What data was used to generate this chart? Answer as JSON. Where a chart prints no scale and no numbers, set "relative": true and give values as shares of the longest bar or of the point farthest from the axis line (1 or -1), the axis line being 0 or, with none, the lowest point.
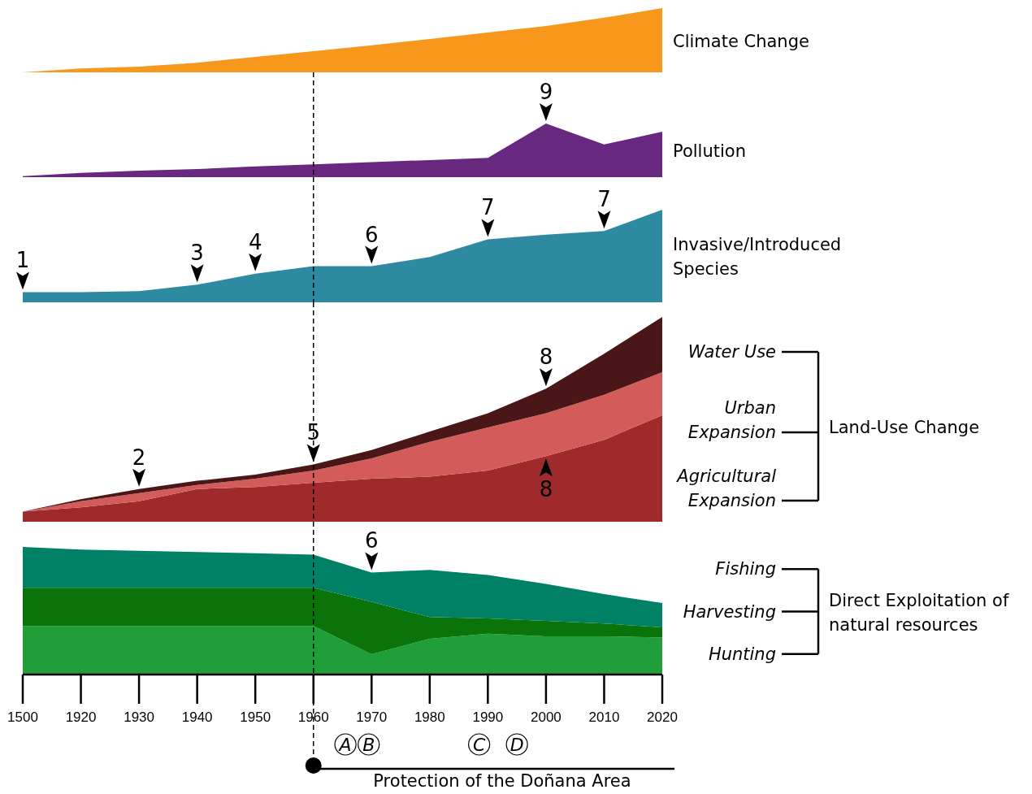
{
  "chart_data": [
    {
      "type": "area",
      "relative": true,
      "tick_labels": false,
      "categories": [
        "1500",
        "1920",
        "1930",
        "1940",
        "1950",
        "1960",
        "1970",
        "1980",
        "1990",
        "2000",
        "2010",
        "2020"
      ],
      "series": [
        {
          "name": "Climate Change",
          "color": "#f7981d",
          "values": [
            0,
            0.06,
            0.09,
            0.15,
            0.24,
            0.33,
            0.42,
            0.52,
            0.62,
            0.72,
            0.85,
            1
          ]
        }
      ]
    },
    {
      "type": "area",
      "relative": true,
      "tick_labels": false,
      "categories": [
        "1500",
        "1920",
        "1930",
        "1940",
        "1950",
        "1960",
        "1970",
        "1980",
        "1990",
        "2000",
        "2010",
        "2020"
      ],
      "series": [
        {
          "name": "Pollution",
          "color": "#68287f",
          "values": [
            0.02,
            0.08,
            0.12,
            0.15,
            0.2,
            0.24,
            0.28,
            0.32,
            0.36,
            1,
            0.61,
            0.85
          ]
        }
      ],
      "ref_lines": [
        {
          "axis": "x",
          "value": "1960",
          "color": "#000000",
          "line_style": "dashed"
        }
      ],
      "annotations": [
        {
          "text": "9",
          "x": "2000",
          "y": 1
        }
      ]
    },
    {
      "type": "area",
      "relative": true,
      "tick_labels": false,
      "categories": [
        "1500",
        "1920",
        "1930",
        "1940",
        "1950",
        "1960",
        "1970",
        "1980",
        "1990",
        "2000",
        "2010",
        "2020"
      ],
      "series": [
        {
          "name": "Invasive/Introduced Species",
          "color": "#2e8aa0",
          "values": [
            0.11,
            0.11,
            0.12,
            0.19,
            0.31,
            0.39,
            0.39,
            0.49,
            0.68,
            0.73,
            0.77,
            1
          ]
        }
      ],
      "ref_lines": [
        {
          "axis": "x",
          "value": "1960",
          "color": "#000000",
          "line_style": "dashed"
        }
      ],
      "annotations": [
        {
          "text": "1",
          "x": "1500",
          "y": 0.11
        },
        {
          "text": "3",
          "x": "1940",
          "y": 0.19
        },
        {
          "text": "4",
          "x": "1950",
          "y": 0.31
        },
        {
          "text": "6",
          "x": "1970",
          "y": 0.39
        },
        {
          "text": "7",
          "x": "1990",
          "y": 0.68
        },
        {
          "text": "7",
          "x": "2010",
          "y": 0.77
        }
      ]
    },
    {
      "type": "area",
      "relative": true,
      "stacked": true,
      "tick_labels": false,
      "legend_title": "Land-Use Change",
      "categories": [
        "1500",
        "1920",
        "1930",
        "1940",
        "1950",
        "1960",
        "1970",
        "1980",
        "1990",
        "2000",
        "2010",
        "2020"
      ],
      "series": [
        {
          "name": "Agricultural Expansion",
          "color": "#9e2a2b",
          "values": [
            0.05,
            0.07,
            0.1,
            0.16,
            0.17,
            0.19,
            0.21,
            0.22,
            0.25,
            0.32,
            0.4,
            0.52
          ]
        },
        {
          "name": "Urban Expansion",
          "color": "#d35c5a",
          "values": [
            0,
            0.03,
            0.04,
            0.02,
            0.04,
            0.06,
            0.1,
            0.17,
            0.21,
            0.21,
            0.22,
            0.21
          ]
        },
        {
          "name": "Water Use",
          "color": "#4a1617",
          "values": [
            0,
            0.01,
            0.02,
            0.02,
            0.02,
            0.03,
            0.04,
            0.05,
            0.07,
            0.12,
            0.2,
            0.27
          ]
        }
      ],
      "ref_lines": [
        {
          "axis": "x",
          "value": "1960",
          "color": "#000000",
          "line_style": "dashed"
        }
      ],
      "annotations": [
        {
          "text": "2",
          "x": "1930",
          "y": 0.16
        },
        {
          "text": "5",
          "x": "1960",
          "y": 0.28
        },
        {
          "text": "8",
          "x": "2000",
          "y": 0.65
        },
        {
          "text": "8",
          "x": "2000",
          "y": 0.32
        }
      ]
    },
    {
      "type": "area",
      "relative": true,
      "stacked": true,
      "tick_labels": "x",
      "legend_title": "Direct Exploitation of natural resources",
      "categories": [
        "1500",
        "1920",
        "1930",
        "1940",
        "1950",
        "1960",
        "1970",
        "1980",
        "1990",
        "2000",
        "2010",
        "2020"
      ],
      "series": [
        {
          "name": "Hunting",
          "color": "#1f9e39",
          "values": [
            0.38,
            0.38,
            0.38,
            0.38,
            0.38,
            0.38,
            0.16,
            0.28,
            0.32,
            0.3,
            0.3,
            0.29
          ]
        },
        {
          "name": "Harvesting",
          "color": "#0a730a",
          "values": [
            0.3,
            0.3,
            0.3,
            0.3,
            0.3,
            0.3,
            0.41,
            0.17,
            0.12,
            0.12,
            0.1,
            0.08
          ]
        },
        {
          "name": "Fishing",
          "color": "#008064",
          "values": [
            0.32,
            0.3,
            0.29,
            0.28,
            0.27,
            0.26,
            0.23,
            0.37,
            0.34,
            0.29,
            0.23,
            0.19
          ]
        }
      ],
      "ref_lines": [
        {
          "axis": "x",
          "value": "1960",
          "color": "#000000",
          "line_style": "dashed"
        }
      ],
      "annotations": [
        {
          "text": "6",
          "x": "1970",
          "y": 0.8
        },
        "A",
        "B",
        "C",
        "D",
        "Protection of the Doñana Area"
      ]
    }
  ]
}
